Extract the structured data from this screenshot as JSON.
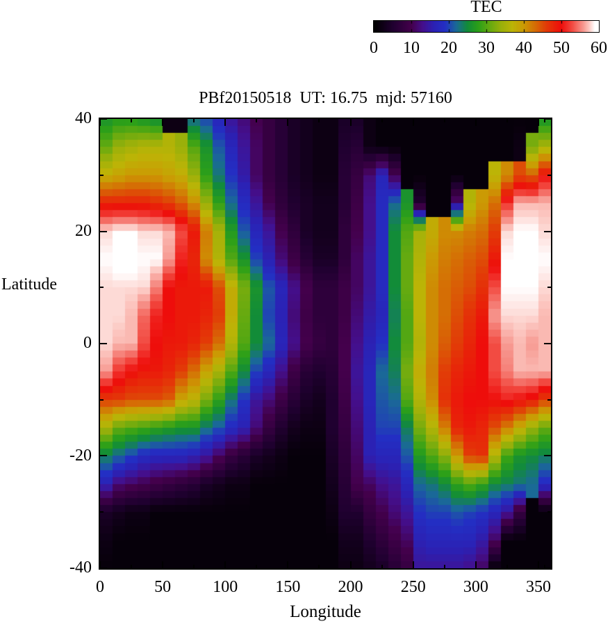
{
  "title": "PBf20150518  UT: 16.75  mjd: 57160",
  "colorbar": {
    "label": "TEC",
    "min": 0,
    "max": 60,
    "tick_labels": [
      "0",
      "10",
      "20",
      "30",
      "40",
      "50",
      "60"
    ],
    "tick_values": [
      0,
      10,
      20,
      30,
      40,
      50,
      60
    ],
    "bar_tick_values": [
      10,
      20,
      30,
      40,
      50
    ],
    "stops": [
      [
        0,
        "#000000"
      ],
      [
        5,
        "#200030"
      ],
      [
        10,
        "#44004c"
      ],
      [
        13,
        "#440f8c"
      ],
      [
        16,
        "#2b21b4"
      ],
      [
        19,
        "#232fc4"
      ],
      [
        22,
        "#1a6a96"
      ],
      [
        25,
        "#128c38"
      ],
      [
        28,
        "#2da018"
      ],
      [
        31,
        "#66aa10"
      ],
      [
        34,
        "#9ab00a"
      ],
      [
        37,
        "#bcb406"
      ],
      [
        40,
        "#cb9a04"
      ],
      [
        43,
        "#d56e05"
      ],
      [
        46,
        "#e23c07"
      ],
      [
        50,
        "#ee0d0b"
      ],
      [
        53,
        "#f24b42"
      ],
      [
        56,
        "#f79a92"
      ],
      [
        57.5,
        "#fcc8c2"
      ],
      [
        59,
        "#ffffff"
      ],
      [
        60,
        "#ffffff"
      ]
    ]
  },
  "axes": {
    "x": {
      "label": "Longitude",
      "min": 0,
      "max": 360,
      "major_ticks": [
        0,
        50,
        100,
        150,
        200,
        250,
        300,
        350
      ],
      "minor_ticks": [
        25,
        75,
        125,
        175,
        225,
        275,
        325,
        355
      ]
    },
    "y": {
      "label": "Latitude",
      "min": -40,
      "max": 40,
      "major_ticks": [
        40,
        20,
        0,
        -20,
        -40
      ],
      "minor_ticks": [
        30,
        10,
        -10,
        -30
      ]
    }
  },
  "chart_data": {
    "type": "heatmap",
    "title": "PBf20150518  UT: 16.75  mjd: 57160",
    "xlabel": "Longitude",
    "ylabel": "Latitude",
    "value_label": "TEC",
    "xlim": [
      0,
      360
    ],
    "ylim": [
      -40,
      40
    ],
    "vlim": [
      0,
      60
    ],
    "x_centers": [
      5,
      15,
      25,
      35,
      45,
      55,
      65,
      75,
      85,
      95,
      105,
      115,
      125,
      135,
      145,
      155,
      165,
      175,
      185,
      195,
      205,
      215,
      225,
      235,
      245,
      255,
      265,
      275,
      285,
      295,
      305,
      315,
      325,
      335,
      345,
      355
    ],
    "y_centers": [
      40,
      35,
      30,
      25,
      20,
      15,
      10,
      5,
      0,
      -5,
      -10,
      -15,
      -20,
      -25,
      -30,
      -35,
      -40
    ],
    "values": [
      [
        26,
        27,
        27,
        26,
        25,
        2,
        2,
        22,
        20,
        17,
        14,
        12,
        10,
        8,
        6,
        4,
        3,
        2,
        2,
        4,
        4,
        2,
        1,
        1,
        1,
        1,
        1,
        1,
        1,
        1,
        1,
        1,
        1,
        1,
        1,
        26
      ],
      [
        31,
        34,
        35,
        36,
        36,
        36,
        34,
        30,
        26,
        21,
        17,
        14,
        11,
        8,
        6,
        4,
        3,
        2,
        2,
        5,
        6,
        2,
        1,
        1,
        1,
        1,
        1,
        1,
        1,
        1,
        1,
        1,
        1,
        2,
        32,
        35
      ],
      [
        38,
        39,
        40,
        40,
        40,
        39,
        38,
        34,
        28,
        23,
        19,
        15,
        11,
        8,
        6,
        4,
        3,
        2,
        2,
        6,
        8,
        12,
        17,
        10,
        1,
        1,
        1,
        1,
        1,
        1,
        1,
        37,
        41,
        45,
        44,
        50
      ],
      [
        48,
        48,
        48,
        48,
        47,
        46,
        44,
        41,
        34,
        28,
        22,
        18,
        14,
        10,
        7,
        5,
        4,
        3,
        3,
        6,
        9,
        13,
        18,
        22,
        26,
        5,
        1,
        1,
        12,
        36,
        40,
        43,
        52,
        57,
        57,
        57
      ],
      [
        58,
        59,
        59,
        58,
        58,
        57,
        53,
        49,
        42,
        35,
        27,
        21,
        17,
        14,
        10,
        7,
        4,
        3,
        3,
        7,
        10,
        13,
        18,
        25,
        30,
        35,
        38,
        41,
        41,
        42,
        43,
        46,
        58,
        59,
        59,
        58
      ],
      [
        59,
        60,
        60,
        59,
        59,
        56,
        51,
        48,
        41,
        36,
        30,
        26,
        20,
        16,
        12,
        9,
        6,
        4,
        4,
        7,
        11,
        14,
        18,
        25,
        31,
        36,
        40,
        42,
        43,
        44,
        45,
        49,
        59,
        60,
        60,
        59
      ],
      [
        58,
        58,
        58,
        58,
        55,
        50,
        49,
        49,
        49,
        45,
        38,
        32,
        26,
        21,
        17,
        13,
        10,
        7,
        7,
        9,
        11,
        14,
        18,
        25,
        31,
        37,
        41,
        43,
        44,
        45,
        47,
        53,
        59,
        59,
        59,
        58
      ],
      [
        58,
        58,
        57,
        54,
        51,
        50,
        49,
        49,
        48,
        46,
        38,
        31,
        25,
        20,
        16,
        12,
        9,
        7,
        7,
        9,
        12,
        15,
        17,
        24,
        30,
        37,
        41,
        43,
        45,
        47,
        49,
        56,
        58,
        58,
        58,
        57
      ],
      [
        58,
        57,
        57,
        53,
        50,
        49,
        49,
        48,
        46,
        43,
        36,
        30,
        25,
        22,
        17,
        13,
        10,
        8,
        7,
        10,
        13,
        16,
        19,
        25,
        30,
        36,
        41,
        44,
        46,
        48,
        50,
        53,
        56,
        57,
        56,
        57
      ],
      [
        56,
        52,
        50,
        49,
        49,
        48,
        46,
        43,
        39,
        35,
        30,
        25,
        20,
        17,
        13,
        9,
        6,
        5,
        6,
        10,
        14,
        17,
        22,
        24,
        32,
        38,
        42,
        46,
        48,
        49,
        50,
        53,
        55,
        57,
        57,
        57
      ],
      [
        46,
        46,
        45,
        45,
        45,
        44,
        39,
        37,
        32,
        28,
        23,
        19,
        14,
        12,
        9,
        6,
        4,
        3,
        5,
        9,
        13,
        17,
        21,
        22,
        30,
        36,
        41,
        47,
        49,
        50,
        50,
        50,
        51,
        50,
        49,
        46
      ],
      [
        35,
        31,
        30,
        29,
        28,
        27,
        26,
        26,
        23,
        21,
        18,
        16,
        12,
        8,
        5,
        3,
        2,
        2,
        5,
        8,
        12,
        16,
        20,
        20,
        24,
        32,
        36,
        42,
        48,
        49,
        48,
        45,
        42,
        38,
        34,
        31
      ],
      [
        24,
        22,
        20,
        18,
        17,
        17,
        17,
        16,
        14,
        11,
        8,
        6,
        4,
        3,
        2,
        1,
        1,
        1,
        4,
        7,
        11,
        16,
        17,
        17,
        21,
        27,
        30,
        33,
        40,
        46,
        47,
        36,
        29,
        26,
        25,
        24
      ],
      [
        16,
        12,
        11,
        10,
        9,
        8,
        7,
        6,
        4,
        3,
        2,
        2,
        1,
        1,
        1,
        1,
        1,
        1,
        3,
        6,
        10,
        11,
        13,
        14,
        17,
        22,
        23,
        25,
        28,
        30,
        28,
        25,
        24,
        23,
        22,
        18
      ],
      [
        4,
        3,
        2,
        2,
        1,
        1,
        1,
        1,
        1,
        1,
        1,
        1,
        1,
        1,
        1,
        1,
        1,
        1,
        2,
        5,
        5,
        8,
        10,
        12,
        14,
        19,
        20,
        20,
        21,
        20,
        19,
        17,
        14,
        8,
        1,
        1
      ],
      [
        2,
        1,
        1,
        1,
        1,
        1,
        1,
        1,
        1,
        1,
        1,
        1,
        1,
        1,
        1,
        1,
        1,
        1,
        1,
        3,
        3,
        5,
        7,
        9,
        11,
        16,
        17,
        17,
        17,
        17,
        15,
        11,
        1,
        1,
        1,
        1
      ],
      [
        1,
        1,
        1,
        1,
        1,
        1,
        1,
        1,
        1,
        1,
        1,
        1,
        1,
        1,
        1,
        1,
        1,
        1,
        1,
        2,
        2,
        3,
        4,
        6,
        8,
        14,
        14,
        14,
        14,
        13,
        11,
        1,
        1,
        1,
        1,
        1
      ]
    ]
  }
}
